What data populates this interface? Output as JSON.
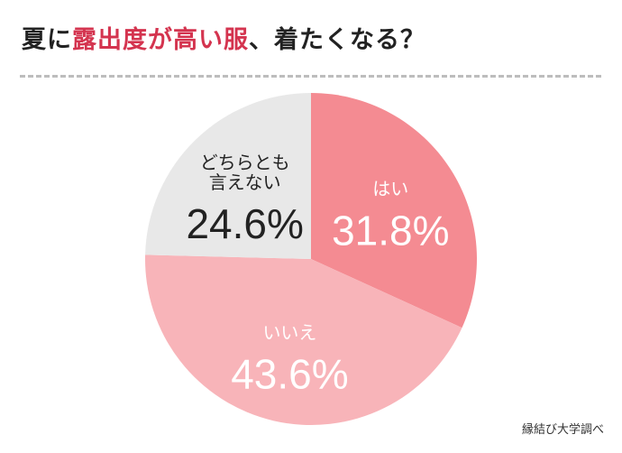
{
  "title": {
    "prefix": "夏に",
    "highlight": "露出度が高い服",
    "suffix": "、着たくなる？"
  },
  "source": "縁結び大学調べ",
  "chart_data": {
    "type": "pie",
    "start": "12 o'clock, clockwise",
    "slices": [
      {
        "label": "はい",
        "value": 31.8,
        "value_label": "31.8%",
        "color": "#f48b92",
        "text_color": "#ffffff"
      },
      {
        "label": "いいえ",
        "value": 43.6,
        "value_label": "43.6%",
        "color": "#f8b4b9",
        "text_color": "#ffffff"
      },
      {
        "label": "どちらとも\n言えない",
        "value": 24.6,
        "value_label": "24.6%",
        "color": "#e8e8e8",
        "text_color": "#222222"
      }
    ]
  }
}
